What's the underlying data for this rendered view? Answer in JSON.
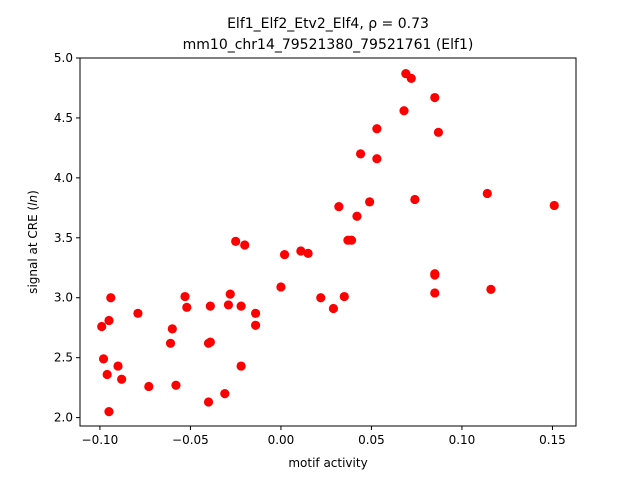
{
  "chart_data": {
    "type": "scatter",
    "title_line1": "Elf1_Elf2_Etv2_Elf4, ρ = 0.73",
    "title_line2": "mm10_chr14_79521380_79521761 (Elf1)",
    "xlabel": "motif activity",
    "ylabel": "signal at CRE (ln)",
    "xlim": [
      -0.111,
      0.163
    ],
    "ylim": [
      1.93,
      5.0
    ],
    "xticks": [
      -0.1,
      -0.05,
      0.0,
      0.05,
      0.1,
      0.15
    ],
    "xtick_labels": [
      "−0.10",
      "−0.05",
      "0.00",
      "0.05",
      "0.10",
      "0.15"
    ],
    "yticks": [
      2.0,
      2.5,
      3.0,
      3.5,
      4.0,
      4.5,
      5.0
    ],
    "ytick_labels": [
      "2.0",
      "2.5",
      "3.0",
      "3.5",
      "4.0",
      "4.5",
      "5.0"
    ],
    "grid": false,
    "marker_color": "#ff0000",
    "points": [
      {
        "x": -0.099,
        "y": 2.76
      },
      {
        "x": -0.098,
        "y": 2.49
      },
      {
        "x": -0.096,
        "y": 2.36
      },
      {
        "x": -0.095,
        "y": 2.81
      },
      {
        "x": -0.094,
        "y": 3.0
      },
      {
        "x": -0.095,
        "y": 2.05
      },
      {
        "x": -0.09,
        "y": 2.43
      },
      {
        "x": -0.088,
        "y": 2.32
      },
      {
        "x": -0.079,
        "y": 2.87
      },
      {
        "x": -0.073,
        "y": 2.26
      },
      {
        "x": -0.061,
        "y": 2.62
      },
      {
        "x": -0.06,
        "y": 2.74
      },
      {
        "x": -0.058,
        "y": 2.27
      },
      {
        "x": -0.053,
        "y": 3.01
      },
      {
        "x": -0.052,
        "y": 2.92
      },
      {
        "x": -0.04,
        "y": 2.13
      },
      {
        "x": -0.04,
        "y": 2.62
      },
      {
        "x": -0.039,
        "y": 2.63
      },
      {
        "x": -0.039,
        "y": 2.93
      },
      {
        "x": -0.031,
        "y": 2.2
      },
      {
        "x": -0.029,
        "y": 2.94
      },
      {
        "x": -0.028,
        "y": 3.03
      },
      {
        "x": -0.025,
        "y": 3.47
      },
      {
        "x": -0.022,
        "y": 2.93
      },
      {
        "x": -0.022,
        "y": 2.43
      },
      {
        "x": -0.02,
        "y": 3.44
      },
      {
        "x": -0.014,
        "y": 2.87
      },
      {
        "x": -0.014,
        "y": 2.77
      },
      {
        "x": 0.0,
        "y": 3.09
      },
      {
        "x": 0.002,
        "y": 3.36
      },
      {
        "x": 0.011,
        "y": 3.39
      },
      {
        "x": 0.015,
        "y": 3.37
      },
      {
        "x": 0.022,
        "y": 3.0
      },
      {
        "x": 0.029,
        "y": 2.91
      },
      {
        "x": 0.032,
        "y": 3.76
      },
      {
        "x": 0.035,
        "y": 3.01
      },
      {
        "x": 0.037,
        "y": 3.48
      },
      {
        "x": 0.039,
        "y": 3.48
      },
      {
        "x": 0.042,
        "y": 3.68
      },
      {
        "x": 0.044,
        "y": 4.2
      },
      {
        "x": 0.049,
        "y": 3.8
      },
      {
        "x": 0.053,
        "y": 4.41
      },
      {
        "x": 0.053,
        "y": 4.16
      },
      {
        "x": 0.068,
        "y": 4.56
      },
      {
        "x": 0.069,
        "y": 4.87
      },
      {
        "x": 0.072,
        "y": 4.83
      },
      {
        "x": 0.074,
        "y": 3.82
      },
      {
        "x": 0.085,
        "y": 4.67
      },
      {
        "x": 0.085,
        "y": 3.19
      },
      {
        "x": 0.085,
        "y": 3.2
      },
      {
        "x": 0.085,
        "y": 3.04
      },
      {
        "x": 0.087,
        "y": 4.38
      },
      {
        "x": 0.114,
        "y": 3.87
      },
      {
        "x": 0.116,
        "y": 3.07
      },
      {
        "x": 0.151,
        "y": 3.77
      }
    ]
  }
}
